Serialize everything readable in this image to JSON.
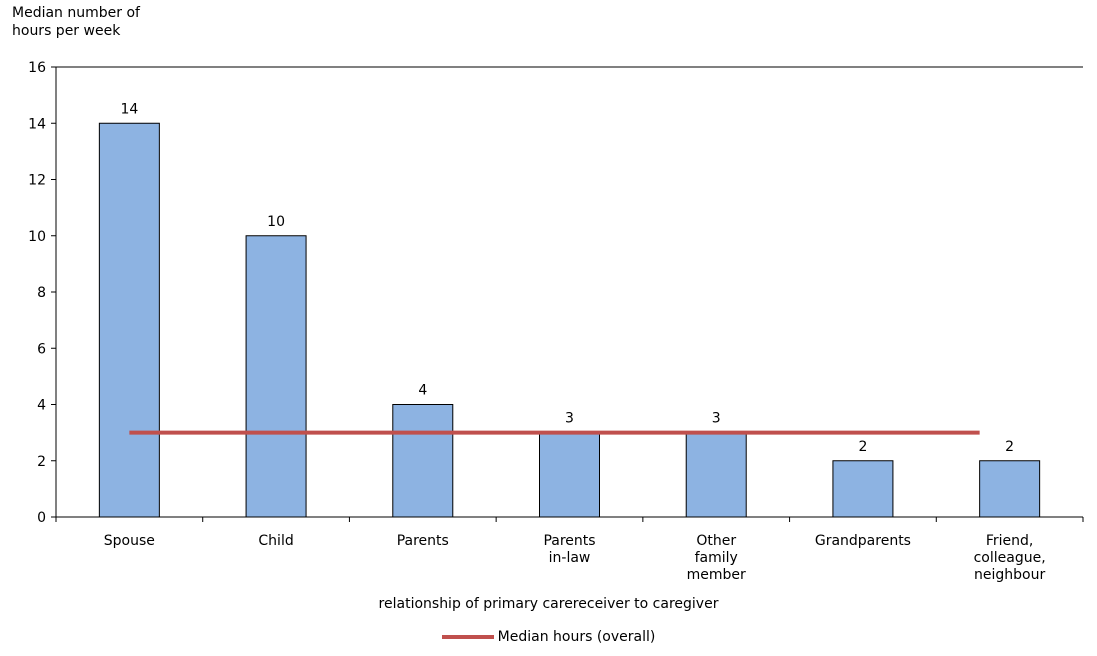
{
  "chart_data": {
    "type": "bar",
    "ylabel": "Median number of hours per week",
    "xlabel": "relationship of primary carereceiver to caregiver",
    "ylim": [
      0,
      16
    ],
    "yticks": [
      0,
      2,
      4,
      6,
      8,
      10,
      12,
      14,
      16
    ],
    "yticks_text": [
      "0",
      "2",
      "4",
      "6",
      "8",
      "10",
      "12",
      "14",
      "16"
    ],
    "categories": [
      [
        "Spouse"
      ],
      [
        "Child"
      ],
      [
        "Parents"
      ],
      [
        "Parents",
        "in-law"
      ],
      [
        "Other",
        "family",
        "member"
      ],
      [
        "Grandparents"
      ],
      [
        "Friend,",
        "colleague,",
        "neighbour"
      ]
    ],
    "values": [
      14,
      10,
      4,
      3,
      3,
      2,
      2
    ],
    "value_labels": [
      "14",
      "10",
      "4",
      "3",
      "3",
      "2",
      "2"
    ],
    "bar_color": "#8db3e2",
    "line": {
      "name": "Median hours (overall)",
      "value": 3,
      "color": "#c0504d"
    },
    "legend": {
      "label": "Median hours (overall)",
      "placement": "bottom"
    },
    "grid": false
  }
}
